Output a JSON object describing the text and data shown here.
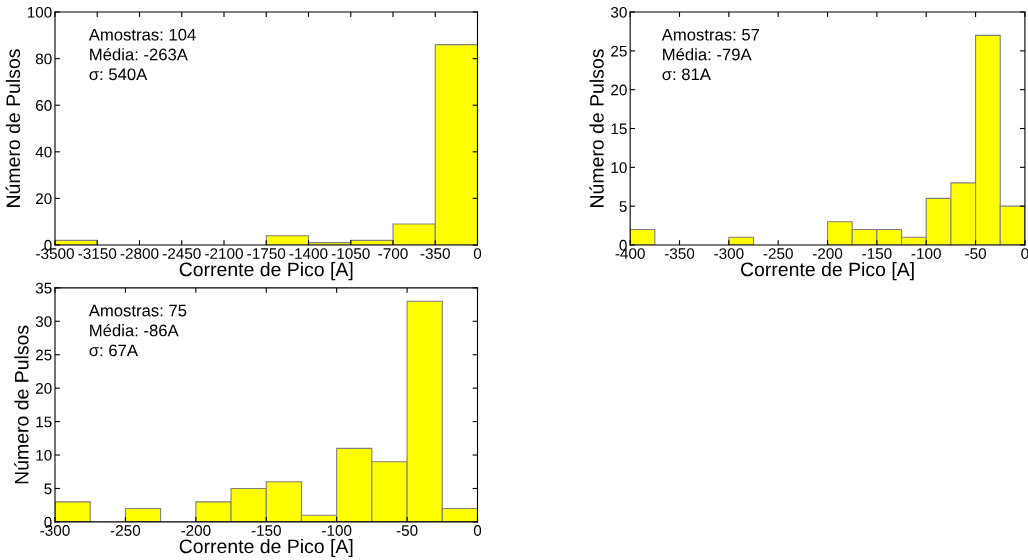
{
  "chart_data": [
    {
      "type": "histogram",
      "xlabel": "Corrente de Pico [A]",
      "ylabel": "Número de Pulsos",
      "annotations": [
        "Amostras: 104",
        "Média: -263A",
        "σ: 540A"
      ],
      "color": "#ffff00",
      "bins": [
        -3500,
        -3150,
        -2800,
        -2450,
        -2100,
        -1750,
        -1400,
        -1050,
        -700,
        -350,
        0
      ],
      "values": [
        2,
        0,
        0,
        0,
        0,
        4,
        1,
        2,
        9,
        86
      ],
      "xlim": [
        -3500,
        0
      ],
      "xticks": [
        -3500,
        -3150,
        -2800,
        -2450,
        -2100,
        -1750,
        -1400,
        -1050,
        -700,
        -350,
        0
      ],
      "ylim": [
        0,
        100
      ],
      "yticks": [
        0,
        20,
        40,
        60,
        80,
        100
      ],
      "grid": false
    },
    {
      "type": "histogram",
      "xlabel": "Corrente de Pico [A]",
      "ylabel": "Número de Pulsos",
      "annotations": [
        "Amostras: 57",
        "Média: -79A",
        "σ: 81A"
      ],
      "color": "#ffff00",
      "bins": [
        -400,
        -375,
        -350,
        -325,
        -300,
        -275,
        -250,
        -225,
        -200,
        -175,
        -150,
        -125,
        -100,
        -75,
        -50,
        -25,
        0
      ],
      "values": [
        2,
        0,
        0,
        0,
        1,
        0,
        0,
        0,
        3,
        2,
        2,
        1,
        6,
        8,
        27,
        5
      ],
      "xlim": [
        -400,
        0
      ],
      "xticks": [
        -400,
        -350,
        -300,
        -250,
        -200,
        -150,
        -100,
        -50,
        0
      ],
      "ylim": [
        0,
        30
      ],
      "yticks": [
        0,
        5,
        10,
        15,
        20,
        25,
        30
      ],
      "grid": false
    },
    {
      "type": "histogram",
      "xlabel": "Corrente de Pico [A]",
      "ylabel": "Número de Pulsos",
      "annotations": [
        "Amostras: 75",
        "Média: -86A",
        "σ: 67A"
      ],
      "color": "#ffff00",
      "bins": [
        -300,
        -275,
        -250,
        -225,
        -200,
        -175,
        -150,
        -125,
        -100,
        -75,
        -50,
        -25,
        0
      ],
      "values": [
        3,
        0,
        2,
        0,
        3,
        5,
        6,
        1,
        11,
        9,
        33,
        2
      ],
      "xlim": [
        -300,
        0
      ],
      "xticks": [
        -300,
        -250,
        -200,
        -150,
        -100,
        -50,
        0
      ],
      "ylim": [
        0,
        35
      ],
      "yticks": [
        0,
        5,
        10,
        15,
        20,
        25,
        30,
        35
      ],
      "grid": false
    }
  ]
}
